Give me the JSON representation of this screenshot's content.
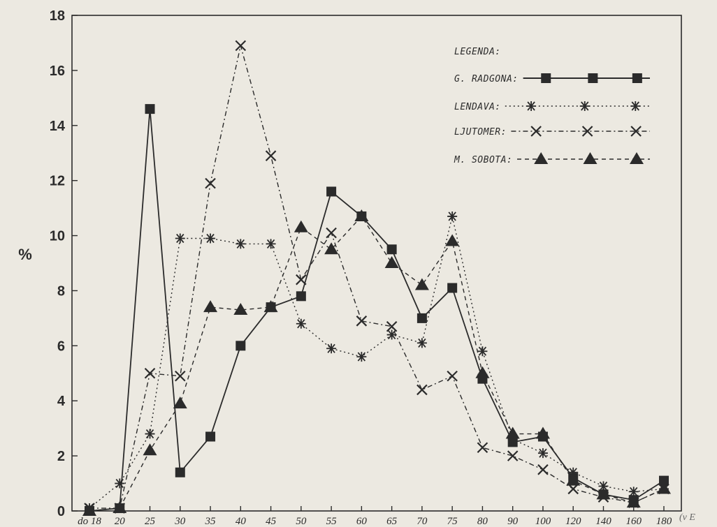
{
  "chart_data": {
    "type": "line",
    "ylabel": "%",
    "ylim": [
      0,
      18
    ],
    "yticks": [
      0,
      2,
      4,
      6,
      8,
      10,
      12,
      14,
      16,
      18
    ],
    "grid": false,
    "legend_position": "top-right",
    "legend_title": "LEGENDA:",
    "x_tick_labels": [
      "do 18",
      "20",
      "25",
      "30",
      "35",
      "40",
      "45",
      "50",
      "55",
      "60",
      "65",
      "70",
      "75",
      "80",
      "90",
      "100",
      "120",
      "140",
      "160",
      "180"
    ],
    "cutoff_label": "(v E",
    "series": [
      {
        "name": "G. RADGONA:",
        "marker": "square",
        "dash": "solid",
        "x": [
          "do 18",
          "20",
          "25",
          "30",
          "35",
          "40",
          "45",
          "50",
          "55",
          "60",
          "65",
          "70",
          "75",
          "80",
          "90",
          "100",
          "120",
          "140",
          "160",
          "180"
        ],
        "values": [
          0,
          0.1,
          14.6,
          1.4,
          2.7,
          6.0,
          7.4,
          7.8,
          11.6,
          10.7,
          9.5,
          7.0,
          8.1,
          4.8,
          2.5,
          2.7,
          1.2,
          0.6,
          0.4,
          1.1
        ]
      },
      {
        "name": "LENDAVA:",
        "marker": "star",
        "dash": "dotted",
        "x": [
          "do 18",
          "20",
          "25",
          "30",
          "35",
          "40",
          "45",
          "50",
          "55",
          "60",
          "65",
          "70",
          "75",
          "80",
          "90",
          "100",
          "120",
          "140",
          "160",
          "180"
        ],
        "values": [
          0.1,
          1.0,
          2.8,
          9.9,
          9.9,
          9.7,
          9.7,
          6.8,
          5.9,
          5.6,
          6.4,
          6.1,
          10.7,
          5.8,
          2.6,
          2.1,
          1.4,
          0.9,
          0.7,
          0.8
        ]
      },
      {
        "name": "LJUTOMER:",
        "marker": "x",
        "dash": "dash-dot",
        "x": [
          "do 18",
          "20",
          "25",
          "30",
          "35",
          "40",
          "45",
          "50",
          "55",
          "60",
          "65",
          "70",
          "75",
          "80",
          "90",
          "100",
          "120",
          "140",
          "160",
          "180"
        ],
        "values": [
          0.1,
          0.1,
          5.0,
          4.9,
          11.9,
          16.9,
          12.9,
          8.4,
          10.1,
          6.9,
          6.7,
          4.4,
          4.9,
          2.3,
          2.0,
          1.5,
          0.8,
          0.5,
          0.3,
          0.8
        ]
      },
      {
        "name": "M. SOBOTA:",
        "marker": "triangle",
        "dash": "dashed",
        "x": [
          "do 18",
          "20",
          "25",
          "30",
          "35",
          "40",
          "45",
          "50",
          "55",
          "60",
          "65",
          "70",
          "75",
          "80",
          "90",
          "100",
          "120",
          "140",
          "160",
          "180"
        ],
        "values": [
          0,
          0.1,
          2.2,
          3.9,
          7.4,
          7.3,
          7.4,
          10.3,
          9.5,
          10.7,
          9.0,
          8.2,
          9.8,
          5.0,
          2.8,
          2.8,
          1.1,
          0.6,
          0.3,
          0.8
        ]
      }
    ]
  },
  "colors": {
    "background": "#ece9e1",
    "ink": "#2b2b2b"
  }
}
